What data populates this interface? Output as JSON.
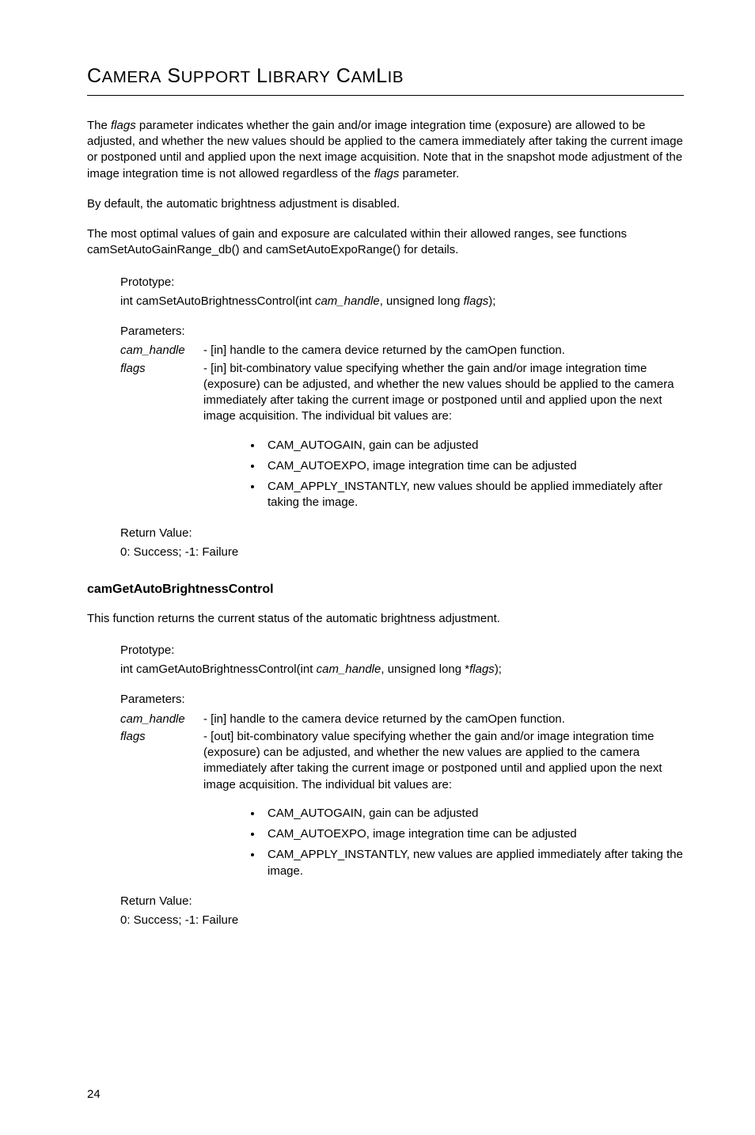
{
  "header": {
    "title_html": "C<span style='font-size:0.82em'>AMERA</span> S<span style='font-size:0.82em'>UPPORT</span> L<span style='font-size:0.82em'>IBRARY</span> C<span style='font-size:0.82em'>AM</span>L<span style='font-size:0.82em'>IB</span>"
  },
  "intro": {
    "p1_pre": "The ",
    "p1_italic": "flags",
    "p1_mid": " parameter indicates whether the gain and/or image integration time (exposure) are allowed to be adjusted, and whether the new values should be applied to the camera immediately after taking the current image or postponed until and applied upon the next image acquisition. Note that in the snapshot mode adjustment of the image integration time is not allowed regardless of the ",
    "p1_italic2": "flags",
    "p1_post": " parameter.",
    "p2": "By default, the automatic brightness adjustment is disabled.",
    "p3": "The most optimal values of gain and exposure are calculated within their allowed ranges, see functions camSetAutoGainRange_db() and camSetAutoExpoRange() for details."
  },
  "func1": {
    "prototype_label": "Prototype:",
    "prototype_pre": "int camSetAutoBrightnessControl(int ",
    "prototype_i1": "cam_handle",
    "prototype_mid": ", unsigned long ",
    "prototype_i2": "flags",
    "prototype_post": ");",
    "parameters_label": "Parameters:",
    "params": [
      {
        "name": "cam_handle",
        "desc": "- [in] handle to the camera device returned by the camOpen function."
      },
      {
        "name": "flags",
        "desc": "- [in] bit-combinatory value specifying whether the gain and/or image integration time (exposure) can be adjusted, and whether the new values should be applied to the camera immediately after taking the current image or postponed until and applied upon the next image acquisition. The individual bit values are:"
      }
    ],
    "bullets": [
      "CAM_AUTOGAIN, gain can be adjusted",
      "CAM_AUTOEXPO, image integration time can be adjusted",
      "CAM_APPLY_INSTANTLY, new values should be applied immediately after taking the image."
    ],
    "return_label": "Return Value:",
    "return_value": "0: Success; -1: Failure"
  },
  "func2": {
    "heading": "camGetAutoBrightnessControl",
    "desc": "This function returns the current status of the automatic brightness adjustment.",
    "prototype_label": "Prototype:",
    "prototype_pre": "int camGetAutoBrightnessControl(int ",
    "prototype_i1": "cam_handle",
    "prototype_mid": ", unsigned long *",
    "prototype_i2": "flags",
    "prototype_post": ");",
    "parameters_label": "Parameters:",
    "params": [
      {
        "name": "cam_handle",
        "desc": "- [in] handle to the camera device returned by the camOpen function."
      },
      {
        "name": "flags",
        "desc": "- [out] bit-combinatory value specifying whether the gain and/or image integration time (exposure) can be adjusted, and whether the new values are applied to the camera immediately after taking the current image or postponed until and applied upon the next image acquisition. The individual bit values are:"
      }
    ],
    "bullets": [
      "CAM_AUTOGAIN, gain can be adjusted",
      "CAM_AUTOEXPO, image integration time can be adjusted",
      "CAM_APPLY_INSTANTLY, new values are applied immediately after taking the image."
    ],
    "return_label": "Return Value:",
    "return_value": "0: Success; -1: Failure"
  },
  "page_number": "24"
}
